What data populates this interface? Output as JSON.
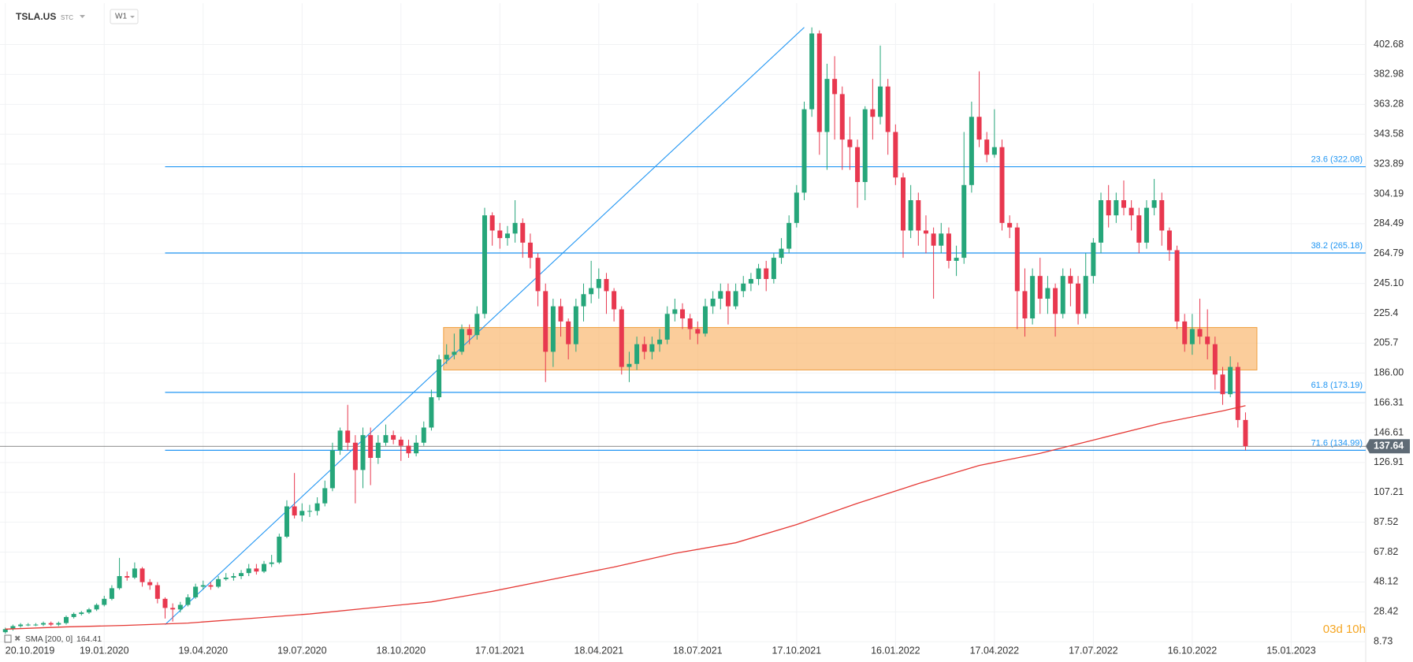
{
  "chart_data": {
    "type": "candlestick",
    "symbol": "TSLA.US",
    "source": "STC",
    "interval": "W1",
    "timer": "03d 10h",
    "up_color": "#26a67a",
    "down_color": "#e8384f",
    "grid": true,
    "xlim": [
      -0.7,
      178.8
    ],
    "ylim": [
      0,
      430
    ],
    "xticks": [
      {
        "value": 0,
        "label": "20.10.2019"
      },
      {
        "value": 13,
        "label": "19.01.2020"
      },
      {
        "value": 26,
        "label": "19.04.2020"
      },
      {
        "value": 39,
        "label": "19.07.2020"
      },
      {
        "value": 52,
        "label": "18.10.2020"
      },
      {
        "value": 65,
        "label": "17.01.2021"
      },
      {
        "value": 78,
        "label": "18.04.2021"
      },
      {
        "value": 91,
        "label": "18.07.2021"
      },
      {
        "value": 104,
        "label": "17.10.2021"
      },
      {
        "value": 117,
        "label": "16.01.2022"
      },
      {
        "value": 130,
        "label": "17.04.2022"
      },
      {
        "value": 143,
        "label": "17.07.2022"
      },
      {
        "value": 156,
        "label": "16.10.2022"
      },
      {
        "value": 169,
        "label": "15.01.2023"
      }
    ],
    "yticks": [
      8.73,
      28.42,
      48.12,
      67.82,
      87.52,
      107.21,
      126.91,
      146.61,
      166.31,
      {
        "value": 186,
        "label": "186.00"
      },
      205.7,
      225.4,
      {
        "value": 245.1,
        "label": "245.10"
      },
      264.79,
      284.49,
      304.19,
      323.89,
      343.58,
      363.28,
      382.98,
      402.68
    ],
    "open": [
      15,
      17,
      19,
      20,
      20,
      20,
      21,
      20,
      21,
      25,
      27,
      28,
      30,
      33,
      37,
      44,
      52,
      51,
      57,
      48,
      46,
      37,
      31,
      30,
      33,
      38,
      45,
      46,
      45,
      50,
      51,
      52,
      54,
      57,
      55,
      60,
      61,
      78,
      98,
      92,
      95,
      95,
      100,
      110,
      135,
      148,
      140,
      122,
      145,
      130,
      140,
      145,
      142,
      138,
      133,
      140,
      150,
      170,
      195,
      198,
      200,
      215,
      211,
      225,
      290,
      280,
      275,
      278,
      285,
      272,
      262,
      240,
      200,
      230,
      220,
      205,
      230,
      238,
      242,
      248,
      240,
      228,
      190,
      192,
      205,
      200,
      205,
      208,
      225,
      228,
      222,
      215,
      212,
      230,
      235,
      240,
      230,
      240,
      245,
      248,
      255,
      248,
      262,
      268,
      285,
      305,
      360,
      410,
      345,
      380,
      370,
      340,
      335,
      312,
      360,
      355,
      375,
      345,
      315,
      280,
      300,
      280,
      278,
      270,
      278,
      260,
      262,
      310,
      355,
      340,
      330,
      335,
      285,
      282,
      240,
      222,
      250,
      235,
      242,
      225,
      250,
      245,
      225,
      250,
      272,
      300,
      290,
      300,
      295,
      290,
      272,
      295,
      300,
      280,
      267,
      220,
      205,
      215,
      210,
      205,
      185,
      172,
      190,
      155
    ],
    "high": [
      18,
      20,
      21,
      21,
      21,
      22,
      22,
      22,
      26,
      28,
      29,
      31,
      34,
      39,
      46,
      64,
      55,
      61,
      58,
      50,
      48,
      38,
      34,
      35,
      40,
      47,
      49,
      48,
      52,
      54,
      54,
      56,
      60,
      60,
      62,
      66,
      80,
      102,
      120,
      100,
      99,
      104,
      115,
      140,
      150,
      165,
      145,
      150,
      150,
      145,
      152,
      148,
      144,
      142,
      145,
      154,
      175,
      198,
      205,
      212,
      218,
      218,
      230,
      295,
      292,
      285,
      283,
      300,
      288,
      278,
      265,
      245,
      235,
      235,
      222,
      235,
      245,
      260,
      255,
      252,
      242,
      230,
      200,
      210,
      210,
      210,
      215,
      230,
      235,
      232,
      225,
      220,
      235,
      240,
      245,
      245,
      245,
      250,
      252,
      258,
      260,
      265,
      275,
      290,
      310,
      365,
      414,
      412,
      390,
      395,
      375,
      355,
      340,
      362,
      380,
      402,
      380,
      350,
      318,
      310,
      305,
      290,
      282,
      285,
      282,
      270,
      345,
      365,
      385,
      345,
      360,
      340,
      290,
      285,
      255,
      255,
      262,
      250,
      245,
      255,
      255,
      250,
      265,
      275,
      305,
      310,
      305,
      313,
      300,
      295,
      300,
      314,
      305,
      282,
      270,
      225,
      225,
      235,
      228,
      210,
      190,
      197,
      193,
      160
    ],
    "low": [
      14,
      16,
      18,
      19,
      19,
      19,
      19,
      19,
      20,
      24,
      26,
      27,
      29,
      32,
      36,
      43,
      49,
      50,
      45,
      43,
      34,
      24,
      22,
      28,
      32,
      37,
      43,
      43,
      44,
      49,
      49,
      50,
      52,
      53,
      54,
      58,
      60,
      77,
      90,
      88,
      91,
      92,
      98,
      108,
      132,
      135,
      100,
      110,
      112,
      126,
      138,
      139,
      128,
      130,
      131,
      138,
      148,
      168,
      192,
      195,
      198,
      205,
      208,
      222,
      270,
      268,
      270,
      272,
      262,
      255,
      230,
      180,
      190,
      210,
      195,
      200,
      220,
      232,
      235,
      225,
      220,
      185,
      180,
      188,
      195,
      195,
      200,
      205,
      220,
      215,
      208,
      205,
      210,
      225,
      228,
      218,
      228,
      236,
      240,
      244,
      240,
      245,
      258,
      265,
      282,
      300,
      355,
      330,
      320,
      340,
      320,
      320,
      295,
      300,
      340,
      350,
      330,
      310,
      262,
      275,
      270,
      265,
      235,
      265,
      255,
      250,
      258,
      305,
      335,
      325,
      328,
      280,
      275,
      215,
      210,
      218,
      225,
      225,
      210,
      222,
      230,
      218,
      222,
      245,
      265,
      282,
      285,
      290,
      280,
      265,
      268,
      290,
      270,
      260,
      215,
      200,
      198,
      205,
      195,
      175,
      165,
      170,
      150,
      135
    ],
    "close": [
      17,
      19,
      20,
      20,
      20,
      21,
      20,
      21,
      25,
      27,
      28,
      30,
      33,
      37,
      44,
      52,
      51,
      57,
      48,
      46,
      37,
      31,
      30,
      33,
      38,
      45,
      46,
      45,
      50,
      51,
      52,
      54,
      57,
      55,
      60,
      61,
      78,
      98,
      92,
      95,
      95,
      100,
      110,
      135,
      148,
      140,
      122,
      145,
      130,
      140,
      145,
      142,
      138,
      133,
      140,
      150,
      170,
      195,
      198,
      200,
      215,
      211,
      225,
      290,
      280,
      275,
      278,
      285,
      272,
      262,
      240,
      200,
      230,
      220,
      205,
      230,
      238,
      242,
      248,
      240,
      228,
      190,
      192,
      205,
      200,
      205,
      208,
      225,
      228,
      222,
      215,
      212,
      230,
      235,
      240,
      230,
      240,
      245,
      248,
      255,
      248,
      262,
      268,
      285,
      305,
      360,
      410,
      345,
      380,
      370,
      340,
      335,
      312,
      360,
      355,
      375,
      345,
      315,
      280,
      300,
      280,
      278,
      270,
      278,
      260,
      262,
      310,
      355,
      340,
      330,
      335,
      285,
      282,
      240,
      222,
      250,
      235,
      242,
      225,
      250,
      245,
      225,
      250,
      272,
      300,
      290,
      300,
      295,
      290,
      272,
      295,
      300,
      280,
      267,
      220,
      205,
      215,
      210,
      205,
      185,
      172,
      190,
      155,
      137.64
    ],
    "sma": {
      "name": "SMA [200, 0]",
      "color": "#e53935",
      "x": [
        0,
        8,
        16,
        24,
        32,
        40,
        48,
        56,
        64,
        72,
        80,
        88,
        96,
        104,
        112,
        120,
        128,
        136,
        144,
        152,
        160,
        163
      ],
      "values": [
        17,
        18.5,
        19.5,
        21,
        24,
        27,
        31,
        35,
        42,
        50,
        58,
        67,
        74,
        86,
        100,
        113,
        125,
        133,
        143,
        153,
        161,
        164.41
      ]
    },
    "trendline": {
      "color": "#2196f3",
      "x": [
        21,
        105
      ],
      "values": [
        20,
        414
      ]
    },
    "zone": {
      "color": "#f9b870",
      "x": [
        57.6,
        164.5
      ],
      "values": [
        188,
        216
      ]
    },
    "fib_levels": [
      {
        "value": 322.08,
        "label": "23.6 (322.08)"
      },
      {
        "value": 265.18,
        "label": "38.2 (265.18)"
      },
      {
        "value": 173.19,
        "label": "61.8 (173.19)"
      },
      {
        "value": 134.99,
        "label": "71.6 (134.99)"
      }
    ]
  }
}
